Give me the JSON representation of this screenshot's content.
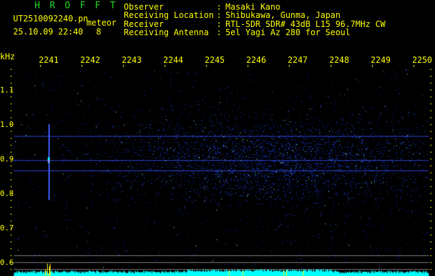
{
  "header": {
    "app_title": "HROFFT",
    "filename": "UT2510092240.pn",
    "mode": "meteor",
    "datetime": "25.10.09 22:40",
    "count": "8",
    "fields": [
      {
        "label": "Observer",
        "value": "Masaki Kano"
      },
      {
        "label": "Receiving Location",
        "value": "Shibukawa, Gunma, Japan"
      },
      {
        "label": "Receiver",
        "value": "RTL-SDR SDR# 43dB L15 96.7MHz CW"
      },
      {
        "label": "Receiving Antenna",
        "value": "5el Yagi Az 280 for Seoul"
      }
    ]
  },
  "axis": {
    "unit": "kHz",
    "freq_labels": [
      "2241",
      "2242",
      "2243",
      "2244",
      "2245",
      "2246",
      "2247",
      "2248",
      "2249",
      "2250"
    ],
    "y_labels": [
      "1.1",
      "1.0",
      "0.9",
      "0.8",
      "0.7",
      "0.6"
    ]
  },
  "colors": {
    "text": "#ffff00",
    "title": "#22dd22",
    "spectrum": "#00ffff",
    "signal": "#2040ff"
  }
}
